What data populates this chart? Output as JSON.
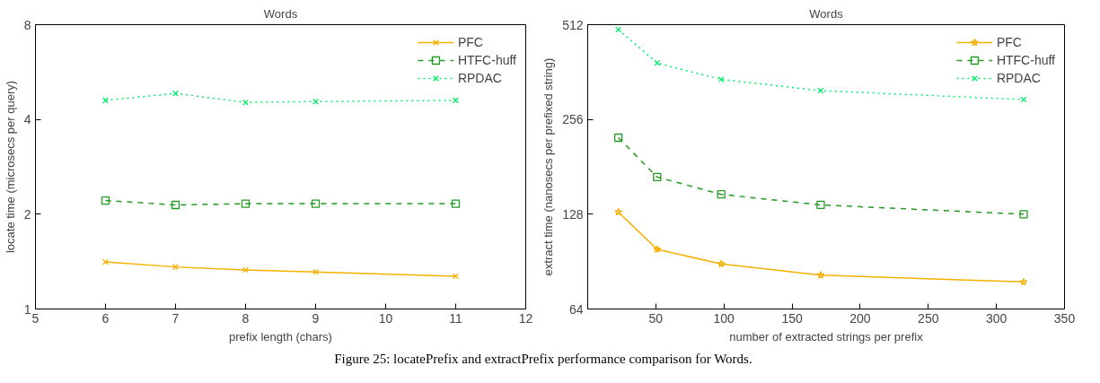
{
  "chart_data": [
    {
      "type": "line",
      "title": "Words",
      "xlabel": "prefix length (chars)",
      "ylabel": "locate time (microsecs per query)",
      "x": [
        6,
        7,
        8,
        9,
        11
      ],
      "xlim": [
        5,
        12
      ],
      "xticks": [
        5,
        6,
        7,
        8,
        9,
        10,
        11,
        12
      ],
      "ylim": [
        1,
        8
      ],
      "yticks": [
        1,
        2,
        4,
        8
      ],
      "log": "y",
      "grid": false,
      "legend": "top right",
      "series": [
        {
          "name": "PFC",
          "color": "#f5b000",
          "values": [
            1.41,
            1.36,
            1.33,
            1.31,
            1.27
          ],
          "marker": "cross",
          "line_style": "solid"
        },
        {
          "name": "HTFC-huff",
          "color": "#229922",
          "values": [
            2.21,
            2.14,
            2.16,
            2.16,
            2.16
          ],
          "marker": "square",
          "line_style": "dashed"
        },
        {
          "name": "RPDAC",
          "color": "#00ee66",
          "values": [
            4.6,
            4.84,
            4.53,
            4.56,
            4.6
          ],
          "marker": "cross",
          "line_style": "dotted"
        }
      ],
      "annotations": [
        "Figure 25: locatePrefix and extractPrefix performance comparison for Words."
      ]
    },
    {
      "type": "line",
      "title": "Words",
      "xlabel": "number of extracted strings per prefix",
      "ylabel": "extract time (nanosecs per prefixed string)",
      "x": [
        22.5,
        51,
        98,
        171,
        320
      ],
      "xlim": [
        0,
        350
      ],
      "xticks": [
        50,
        100,
        150,
        200,
        250,
        300,
        350
      ],
      "ylim": [
        64,
        512
      ],
      "yticks": [
        64,
        128,
        256,
        512
      ],
      "log": "y",
      "grid": false,
      "legend": "top right",
      "series": [
        {
          "name": "PFC",
          "color": "#f5b000",
          "values": [
            130,
            99,
            89,
            82,
            78
          ],
          "marker": "star",
          "line_style": "solid"
        },
        {
          "name": "HTFC-huff",
          "color": "#229922",
          "values": [
            224,
            168,
            148,
            137,
            128
          ],
          "marker": "square",
          "line_style": "dashed"
        },
        {
          "name": "RPDAC",
          "color": "#00ee66",
          "values": [
            494,
            387,
            343,
            316,
            296
          ],
          "marker": "cross",
          "line_style": "dotted"
        }
      ]
    }
  ]
}
